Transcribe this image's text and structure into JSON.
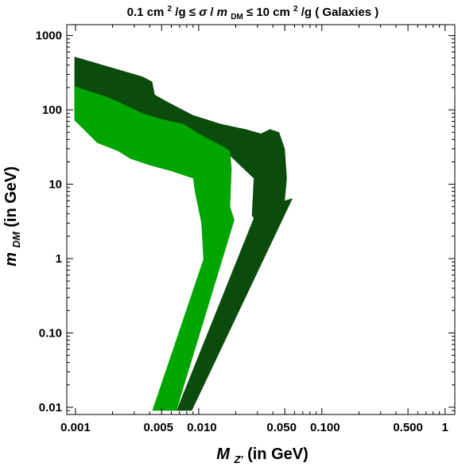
{
  "chart_data": {
    "type": "area",
    "title": {
      "prefix": "0.1 cm",
      "sup1": "2",
      "mid": "/g ≤ ",
      "sigma": "σ",
      "slash": "/",
      "m": "m",
      "sub": "DM",
      "mid2": " ≤ 10 cm",
      "sup2": "2",
      "suffix": "/g ( Galaxies )"
    },
    "xlabel": {
      "main": "M",
      "sub": "Z'",
      "unit": " (in GeV)"
    },
    "ylabel": {
      "main": "m",
      "sub": "DM",
      "unit": " (in GeV)"
    },
    "x_scale": "log",
    "y_scale": "log",
    "xlim": [
      0.00085,
      1.2
    ],
    "ylim": [
      0.008,
      1400
    ],
    "x_ticks": [
      {
        "value": 0.001,
        "label": "0.001"
      },
      {
        "value": 0.005,
        "label": "0.005"
      },
      {
        "value": 0.01,
        "label": "0.010"
      },
      {
        "value": 0.05,
        "label": "0.050"
      },
      {
        "value": 0.1,
        "label": "0.100"
      },
      {
        "value": 0.5,
        "label": "0.500"
      },
      {
        "value": 1,
        "label": "1"
      }
    ],
    "y_ticks": [
      {
        "value": 0.01,
        "label": "0.01"
      },
      {
        "value": 0.1,
        "label": "0.10"
      },
      {
        "value": 1,
        "label": "1"
      },
      {
        "value": 10,
        "label": "10"
      },
      {
        "value": 100,
        "label": "100"
      },
      {
        "value": 1000,
        "label": "1000"
      }
    ],
    "grid": false,
    "series": [
      {
        "color": "#0b4b0b",
        "polygon": [
          [
            0.00098,
            520
          ],
          [
            0.0035,
            280
          ],
          [
            0.0042,
            240
          ],
          [
            0.0044,
            160
          ],
          [
            0.0055,
            130
          ],
          [
            0.009,
            85
          ],
          [
            0.015,
            65
          ],
          [
            0.024,
            55
          ],
          [
            0.032,
            48
          ],
          [
            0.038,
            55
          ],
          [
            0.045,
            50
          ],
          [
            0.05,
            30
          ],
          [
            0.052,
            12
          ],
          [
            0.05,
            6
          ],
          [
            0.058,
            6.5
          ],
          [
            0.0088,
            0.009
          ],
          [
            0.0066,
            0.009
          ],
          [
            0.028,
            3.5
          ],
          [
            0.027,
            3.8
          ],
          [
            0.028,
            12
          ],
          [
            0.018,
            24
          ],
          [
            0.004,
            50
          ],
          [
            0.00098,
            90
          ]
        ]
      },
      {
        "color": "#00a500",
        "polygon": [
          [
            0.00098,
            210
          ],
          [
            0.0012,
            185
          ],
          [
            0.0018,
            150
          ],
          [
            0.0022,
            130
          ],
          [
            0.0035,
            90
          ],
          [
            0.005,
            75
          ],
          [
            0.0075,
            65
          ],
          [
            0.01,
            48
          ],
          [
            0.013,
            38
          ],
          [
            0.016,
            32
          ],
          [
            0.018,
            28
          ],
          [
            0.0185,
            16
          ],
          [
            0.018,
            5
          ],
          [
            0.0195,
            3.3
          ],
          [
            0.0066,
            0.009
          ],
          [
            0.0042,
            0.009
          ],
          [
            0.0125,
            1.9
          ],
          [
            0.011,
            0.8
          ],
          [
            0.0105,
            3
          ],
          [
            0.0093,
            8
          ],
          [
            0.009,
            12
          ],
          [
            0.006,
            15
          ],
          [
            0.004,
            18
          ],
          [
            0.0028,
            22
          ],
          [
            0.0022,
            28
          ],
          [
            0.0015,
            36
          ],
          [
            0.0011,
            60
          ],
          [
            0.00098,
            72
          ]
        ]
      }
    ]
  }
}
